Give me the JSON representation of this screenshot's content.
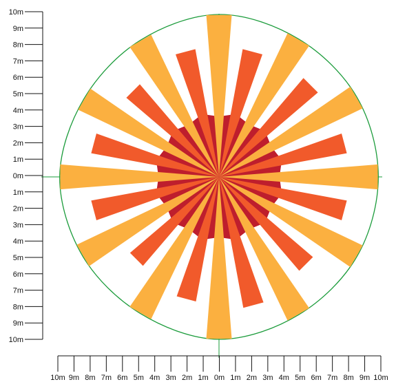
{
  "chart_data": {
    "type": "polar-bar",
    "y_axis_ticks": [
      "10m",
      "9m",
      "8m",
      "7m",
      "6m",
      "5m",
      "4m",
      "3m",
      "2m",
      "1m",
      "0m",
      "1m",
      "2m",
      "3m",
      "4m",
      "5m",
      "6m",
      "7m",
      "8m",
      "9m",
      "10m"
    ],
    "x_axis_ticks": [
      "10m",
      "9m",
      "8m",
      "7m",
      "6m",
      "5m",
      "4m",
      "3m",
      "2m",
      "1m",
      "0m",
      "1m",
      "2m",
      "3m",
      "4m",
      "5m",
      "6m",
      "7m",
      "8m",
      "9m",
      "10m"
    ],
    "range_m": [
      -10,
      10
    ],
    "core_radius_m": 4,
    "series": [
      {
        "color": "#fbb040",
        "width_deg": 9,
        "bearings_deg": [
          0,
          30,
          60,
          90,
          120,
          150,
          180,
          210,
          240,
          270,
          300,
          330
        ],
        "lengths_m": [
          10,
          9.8,
          9.8,
          9.8,
          9.8,
          9.8,
          10,
          9.7,
          9.7,
          9.8,
          9.6,
          9.7
        ]
      },
      {
        "color": "#f15a2b",
        "width_deg": 9,
        "bearings_deg": [
          15,
          45,
          75,
          105,
          135,
          165,
          195,
          225,
          255,
          285,
          315,
          345
        ],
        "lengths_m": [
          8,
          8,
          8,
          8,
          7.6,
          8.2,
          7.8,
          7.2,
          8,
          8,
          7.5,
          8
        ]
      }
    ],
    "core_color": "#be1e2d",
    "boundary_color": "#1a9b3a"
  }
}
